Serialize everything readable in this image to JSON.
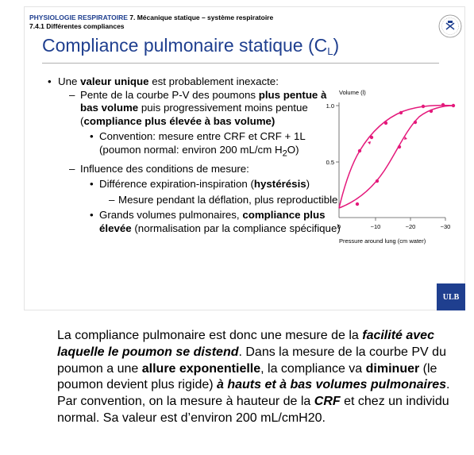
{
  "slide": {
    "course_dept": "PHYSIOLOGIE RESPIRATOIRE",
    "course_chapter": "7. Mécanique statique – système respiratoire",
    "section": "7.4.1 Différentes compliances",
    "title_main": "Compliance pulmonaire statique (C",
    "title_sub": "L",
    "title_close": ")",
    "logo_text": "ULB"
  },
  "bullets": {
    "b1_pre": "Une ",
    "b1_bold": "valeur unique",
    "b1_post": " est probablement inexacte:",
    "b1a_pre": "Pente de la courbe P-V des poumons ",
    "b1a_bold1": "plus pentue à bas volume",
    "b1a_mid": " puis progressivement moins pentue (",
    "b1a_bold2": "compliance plus élevée à bas volume)",
    "b1a_i_pre": "Convention: mesure entre CRF et CRF + 1L (poumon normal: environ 200 mL/cm H",
    "b1a_i_sub": "2",
    "b1a_i_post": "O)",
    "b1b": "Influence des conditions de mesure:",
    "b1b_i_pre": "Différence expiration-inspiration (",
    "b1b_i_bold": "hystérésis",
    "b1b_i_post": ")",
    "b1b_i_a": "Mesure pendant la déflation, plus reproductible",
    "b1b_ii_pre": "Grands volumes pulmonaires, ",
    "b1b_ii_bold": "compliance plus élevée",
    "b1b_ii_post": " (normalisation par la compliance spécifique)"
  },
  "graph": {
    "y_axis_label": "Volume (l)",
    "y_ticks": [
      "1.0",
      "0.5"
    ],
    "x_ticks": [
      "0",
      "−10",
      "−20",
      "−30"
    ],
    "x_axis_label": "Pressure around lung (cm water)",
    "curve_color": "#e4197b"
  },
  "paragraph": {
    "p1": "La compliance pulmonaire est donc une mesure de la ",
    "p2": "facilité avec laquelle le poumon se distend",
    "p3": ". Dans la mesure de la courbe PV du poumon a une ",
    "p4": "allure exponentielle",
    "p5": ", la compliance va ",
    "p6": "diminuer",
    "p7": " (le poumon devient plus rigide) ",
    "p8": "à hauts et à bas volumes pulmonaires",
    "p9": ". Par convention, on la mesure à hauteur de la ",
    "p10": "CRF",
    "p11": " et chez un individu normal. Sa valeur est d’environ 200 mL/cmH20."
  }
}
